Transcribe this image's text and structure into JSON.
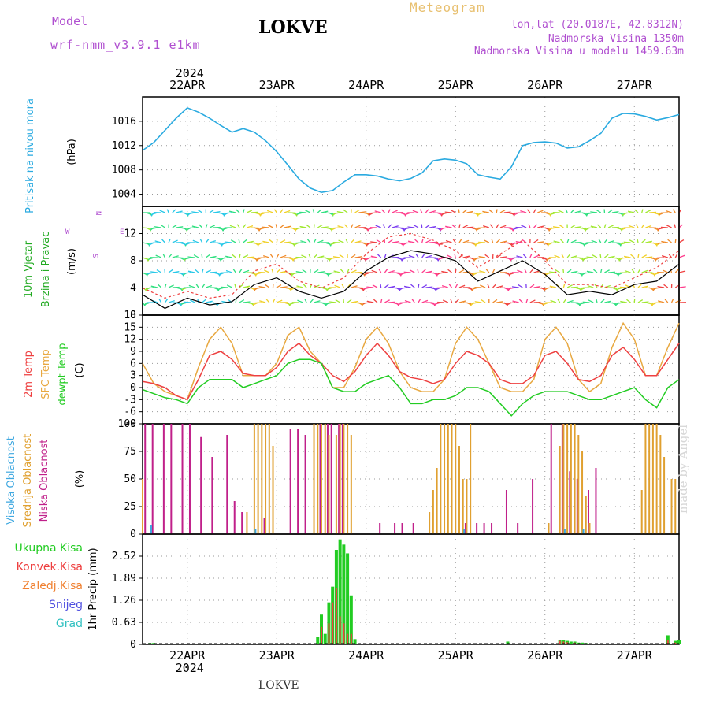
{
  "header": {
    "model_label": "Model",
    "model_name": "wrf-nmm_v3.9.1 e1km",
    "station": "LOKVE",
    "meteogram_label": "Meteogram",
    "lonlat": "lon,lat (20.0187E, 42.8312N)",
    "elevation": "Nadmorska Visina 1350m",
    "elevation_model": "Nadmorska Visina u modelu 1459.63m"
  },
  "footer": {
    "station": "LOKVE"
  },
  "watermark": "made by Angel",
  "colors": {
    "pressure": "#2aaae0",
    "temp2m": "#ee4040",
    "sfc_temp": "#e8a840",
    "dewpoint": "#22cc22",
    "cloud_high": "#3fa8e0",
    "cloud_mid": "#e0a030",
    "cloud_low": "#c0208a",
    "precip_total": "#22cc22",
    "precip_conv": "#ee4040",
    "precip_frozen": "#f08030",
    "snow": "#5050e0",
    "graupel": "#30c0c0",
    "wind_label": "#22aa22",
    "wind_dir_label": "#b04fd0"
  },
  "chart_data": [
    {
      "type": "line",
      "panel": "pressure",
      "ylabel": "Pritisak na nivou mora",
      "unit": "(hPa)",
      "ylim": [
        1002,
        1020
      ],
      "yticks": [
        1004,
        1008,
        1012,
        1016
      ],
      "x_top_labels": [
        "22APR",
        "23APR",
        "24APR",
        "25APR",
        "26APR",
        "27APR"
      ],
      "year_label": "2024",
      "x": [
        0,
        3,
        6,
        9,
        12,
        15,
        18,
        21,
        24,
        27,
        30,
        33,
        36,
        39,
        42,
        45,
        48,
        51,
        54,
        57,
        60,
        63,
        66,
        69,
        72,
        75,
        78,
        81,
        84,
        87,
        90,
        93,
        96,
        99,
        102,
        105,
        108,
        111,
        114,
        117,
        120,
        123,
        126,
        129,
        132,
        135,
        138,
        141,
        144
      ],
      "series": [
        {
          "values": [
            1011.2,
            1012.5,
            1014.5,
            1016.5,
            1018.2,
            1017.5,
            1016.5,
            1015.3,
            1014.2,
            1014.8,
            1014.2,
            1012.8,
            1011,
            1008.8,
            1006.5,
            1005,
            1004.3,
            1004.6,
            1006,
            1007.2,
            1007.2,
            1007,
            1006.5,
            1006.2,
            1006.6,
            1007.5,
            1009.5,
            1009.8,
            1009.6,
            1009,
            1007.2,
            1006.8,
            1006.5,
            1008.5,
            1012,
            1012.5,
            1012.6,
            1012.4,
            1011.6,
            1011.8,
            1012.8,
            1014,
            1016.5,
            1017.3,
            1017.2,
            1016.8,
            1016.2,
            1016.6,
            1017.1
          ]
        }
      ]
    },
    {
      "type": "line",
      "panel": "wind",
      "ylabel": "10m Vjetar Brzina i Pravac",
      "unit": "(m/s)",
      "direction_key": [
        "N",
        "E",
        "W",
        "S"
      ],
      "ylim": [
        0,
        16
      ],
      "yticks": [
        0,
        4,
        8,
        12
      ],
      "x": [
        0,
        6,
        12,
        18,
        24,
        30,
        36,
        42,
        48,
        54,
        60,
        66,
        72,
        78,
        84,
        90,
        96,
        102,
        108,
        114,
        120,
        126,
        132,
        138,
        144
      ],
      "series": [
        {
          "values": [
            3,
            1,
            2.5,
            1.5,
            2,
            4.5,
            5.5,
            3.5,
            2.5,
            3.5,
            6.5,
            8.5,
            9.5,
            9,
            8,
            5,
            6.5,
            8,
            6,
            3,
            3.5,
            3,
            4.5,
            5,
            7.5
          ]
        },
        {
          "values": [
            4,
            2.5,
            3.5,
            2.5,
            3,
            6.5,
            7.5,
            5,
            4,
            5.5,
            9,
            11.5,
            12,
            11,
            9.5,
            7,
            9,
            11,
            8,
            4.5,
            4.5,
            4,
            5.5,
            7,
            9.5
          ]
        }
      ]
    },
    {
      "type": "line",
      "panel": "temperature",
      "ylabel": [
        "2m Temp",
        "SFC Temp",
        "dewpt Temp"
      ],
      "unit": "(C)",
      "ylim": [
        -9,
        18
      ],
      "yticks": [
        -9,
        -6,
        -3,
        0,
        3,
        6,
        9,
        12,
        15,
        18
      ],
      "x": [
        0,
        3,
        6,
        9,
        12,
        15,
        18,
        21,
        24,
        27,
        30,
        33,
        36,
        39,
        42,
        45,
        48,
        51,
        54,
        57,
        60,
        63,
        66,
        69,
        72,
        75,
        78,
        81,
        84,
        87,
        90,
        93,
        96,
        99,
        102,
        105,
        108,
        111,
        114,
        117,
        120,
        123,
        126,
        129,
        132,
        135,
        138,
        141,
        144
      ],
      "series": [
        {
          "name": "2m Temp",
          "values": [
            1.5,
            1,
            0,
            -2,
            -3,
            2,
            8,
            9,
            7,
            3.5,
            3,
            3,
            5,
            9,
            11,
            8,
            6,
            3,
            1.5,
            4,
            8,
            11,
            8,
            4,
            2.5,
            2,
            1,
            2,
            6,
            9,
            8,
            6,
            2,
            1,
            1,
            3,
            8,
            9,
            6,
            2,
            1.5,
            3,
            8,
            10,
            7,
            3,
            3,
            7,
            11
          ]
        },
        {
          "name": "SFC Temp",
          "values": [
            6,
            1,
            -1,
            -2,
            -3,
            5,
            12,
            15,
            11,
            3,
            3,
            3,
            6,
            13,
            15,
            9,
            6,
            0,
            0,
            5,
            12,
            15,
            11,
            4,
            0,
            -1,
            -1,
            2,
            11,
            15,
            12,
            6,
            0,
            -1,
            -1,
            2,
            12,
            15,
            11,
            2,
            -1,
            1,
            10,
            16,
            12,
            3,
            3,
            10,
            16
          ]
        },
        {
          "name": "dewpt Temp",
          "values": [
            -0.5,
            -1.5,
            -2.5,
            -3,
            -4,
            0,
            2,
            2,
            2,
            0,
            1,
            2,
            3,
            6,
            7,
            7,
            6,
            0,
            -1,
            -1,
            1,
            2,
            3,
            0,
            -4,
            -4,
            -3,
            -3,
            -2,
            0,
            0,
            -1,
            -4,
            -7,
            -4,
            -2,
            -1,
            -1,
            -1,
            -2,
            -3,
            -3,
            -2,
            -1,
            0,
            -3,
            -5,
            0,
            2
          ]
        }
      ]
    },
    {
      "type": "bar",
      "panel": "clouds",
      "ylabel": [
        "Visoka Oblacnost",
        "Srednja Oblacnost",
        "Niska Oblacnost"
      ],
      "unit": "(%)",
      "ylim": [
        0,
        100
      ],
      "yticks": [
        0,
        25,
        50,
        75,
        100
      ],
      "series": [
        {
          "name": "Niska Oblacnost",
          "x": [
            1,
            3,
            6,
            8,
            11,
            13,
            16,
            19,
            23,
            25,
            27,
            33,
            40,
            42,
            44,
            48,
            50,
            51,
            53,
            54,
            64,
            68,
            70,
            73,
            87,
            90,
            92,
            94,
            98,
            101,
            105,
            110,
            113,
            115,
            117,
            120,
            122
          ],
          "values": [
            100,
            100,
            100,
            100,
            100,
            100,
            88,
            70,
            90,
            30,
            20,
            15,
            95,
            95,
            90,
            100,
            100,
            100,
            100,
            100,
            10,
            10,
            10,
            10,
            10,
            10,
            10,
            10,
            40,
            10,
            50,
            100,
            100,
            57,
            50,
            40,
            60
          ]
        },
        {
          "name": "Srednja Oblacnost",
          "x": [
            0,
            28,
            30,
            31,
            32,
            33,
            34,
            35,
            46,
            47,
            48,
            49,
            50,
            52,
            53,
            54,
            55,
            56,
            77,
            78,
            79,
            80,
            81,
            82,
            83,
            84,
            85,
            86,
            87,
            88,
            109,
            112,
            113,
            114,
            115,
            116,
            117,
            118,
            119,
            120,
            134,
            135,
            136,
            137,
            138,
            139,
            140,
            142,
            143
          ],
          "values": [
            50,
            20,
            100,
            100,
            100,
            100,
            100,
            80,
            100,
            100,
            100,
            100,
            90,
            90,
            100,
            100,
            100,
            90,
            20,
            40,
            60,
            100,
            100,
            100,
            100,
            100,
            80,
            50,
            50,
            100,
            10,
            80,
            100,
            100,
            100,
            100,
            90,
            75,
            35,
            10,
            40,
            100,
            100,
            100,
            100,
            90,
            70,
            50,
            50
          ]
        },
        {
          "name": "Visoka Oblacnost",
          "x": [
            2,
            30,
            86,
            113,
            118
          ],
          "values": [
            8,
            5,
            5,
            5,
            5
          ]
        }
      ]
    },
    {
      "type": "bar",
      "panel": "precip",
      "ylabel": [
        "Ukupna Kisa",
        "Konvek.Kisa",
        "Zaledj.Kisa",
        "Snijeg",
        "Grad"
      ],
      "unit": "1hr Precip (mm)",
      "ylim": [
        0,
        3.15
      ],
      "yticks": [
        0,
        0.63,
        1.26,
        1.89,
        2.52
      ],
      "x_bottom_labels": [
        "22APR",
        "23APR",
        "24APR",
        "25APR",
        "26APR",
        "27APR"
      ],
      "year_label": "2024",
      "series": [
        {
          "name": "Ukupna Kisa",
          "x": [
            2,
            3,
            47,
            48,
            49,
            50,
            51,
            52,
            53,
            54,
            55,
            56,
            57,
            98,
            112,
            113,
            114,
            115,
            116,
            117,
            118,
            119,
            141,
            143,
            144
          ],
          "values": [
            0.04,
            0.04,
            0.22,
            0.85,
            0.3,
            1.2,
            1.65,
            2.7,
            3.0,
            2.85,
            2.6,
            1.4,
            0.15,
            0.08,
            0.12,
            0.12,
            0.1,
            0.08,
            0.08,
            0.05,
            0.05,
            0.04,
            0.26,
            0.1,
            0.12
          ]
        },
        {
          "name": "Konvek.Kisa",
          "x": [
            48,
            50,
            51,
            52,
            53,
            54,
            55,
            56,
            112,
            113,
            114,
            116,
            141,
            143
          ],
          "values": [
            0.5,
            0.6,
            1.2,
            1.6,
            0.8,
            0.6,
            0.3,
            0.3,
            0.1,
            0.08,
            0.06,
            0.05,
            0.12,
            0.05
          ]
        }
      ]
    }
  ]
}
